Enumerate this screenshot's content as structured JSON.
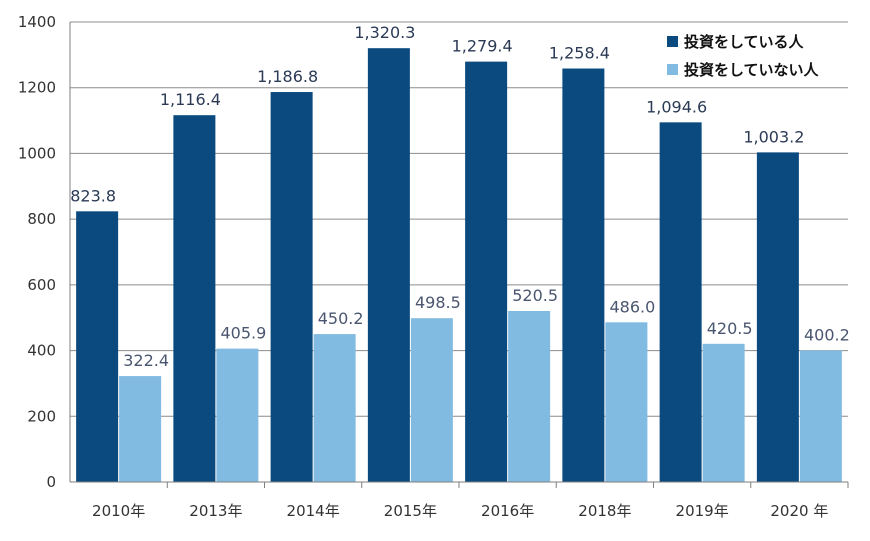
{
  "chart_data": {
    "type": "bar",
    "title": "",
    "xlabel": "",
    "ylabel": "",
    "ylim": [
      0,
      1400
    ],
    "yticks": [
      0,
      200,
      400,
      600,
      800,
      1000,
      1200,
      1400
    ],
    "ytick_labels": [
      "0",
      "200",
      "400",
      "600",
      "800",
      "1000",
      "1200",
      "1400"
    ],
    "categories": [
      "2010年",
      "2013年",
      "2014年",
      "2015年",
      "2016年",
      "2018年",
      "2019年",
      "2020 年"
    ],
    "grid": true,
    "legend_position": "top-right",
    "series": [
      {
        "name": "投資をしている人",
        "color": "#0b4a7e",
        "values": [
          823.8,
          1116.4,
          1186.8,
          1320.3,
          1279.4,
          1258.4,
          1094.6,
          1003.2
        ],
        "labels": [
          "823.8",
          "1,116.4",
          "1,186.8",
          "1,320.3",
          "1,279.4",
          "1,258.4",
          "1,094.6",
          "1,003.2"
        ]
      },
      {
        "name": "投資をしていない人",
        "color": "#82bbe2",
        "values": [
          322.4,
          405.9,
          450.2,
          498.5,
          520.5,
          486.0,
          420.5,
          400.2
        ],
        "labels": [
          "322.4",
          "405.9",
          "450.2",
          "498.5",
          "520.5",
          "486.0",
          "420.5",
          "400.2"
        ]
      }
    ]
  }
}
